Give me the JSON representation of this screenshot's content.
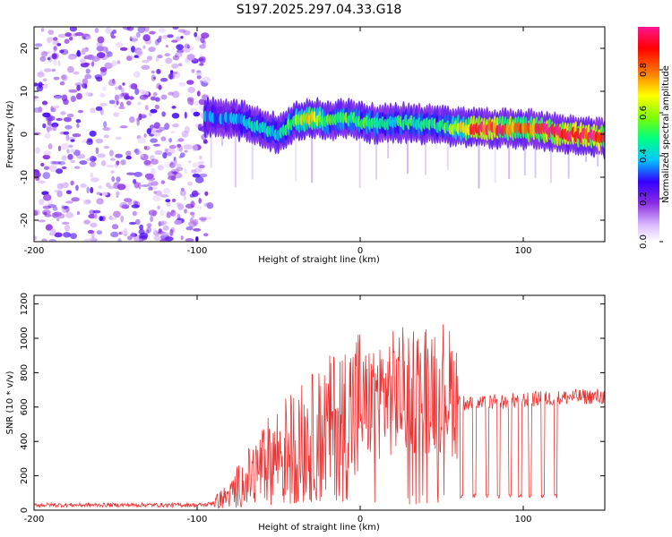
{
  "title": "S197.2025.297.04.33.G18",
  "chart_data": [
    {
      "type": "heatmap",
      "xlabel": "Height of straight line (km)",
      "ylabel": "Frequency (Hz)",
      "xlim": [
        -200,
        150
      ],
      "ylim": [
        -25,
        25
      ],
      "xticks": [
        -200,
        -100,
        0,
        100
      ],
      "yticks": [
        20,
        10,
        0,
        -10,
        -20
      ],
      "colorbar": {
        "label": "Normalized spectral amplitude",
        "range": [
          0,
          1
        ],
        "ticks": [
          0.0,
          0.2,
          0.4,
          0.6,
          0.8
        ],
        "colors": [
          "#ffffff",
          "#d9b8ff",
          "#8a2be2",
          "#3300ff",
          "#00c8ff",
          "#00ff80",
          "#80ff00",
          "#ffff00",
          "#ff8000",
          "#ff0000",
          "#ff1493"
        ]
      },
      "ridge": {
        "x": [
          -95,
          -80,
          -70,
          -60,
          -50,
          -40,
          -30,
          -20,
          -10,
          0,
          10,
          20,
          30,
          40,
          50,
          60,
          70,
          80,
          90,
          100,
          110,
          120,
          130,
          140,
          150
        ],
        "freq": [
          4,
          3.5,
          3,
          1.5,
          0,
          3,
          4,
          3,
          4,
          3,
          2.5,
          2.5,
          2.8,
          2.3,
          2,
          1.5,
          1.5,
          1.5,
          1.3,
          1.2,
          1,
          0.5,
          0,
          -0.5,
          -1
        ],
        "amplitude": [
          0.35,
          0.35,
          0.4,
          0.45,
          0.4,
          0.55,
          0.75,
          0.5,
          0.55,
          0.5,
          0.5,
          0.45,
          0.5,
          0.45,
          0.5,
          0.6,
          0.9,
          0.9,
          0.85,
          0.8,
          0.9,
          0.95,
          0.95,
          0.95,
          0.9
        ]
      }
    },
    {
      "type": "line",
      "xlabel": "Height of straight line (km)",
      "ylabel": "SNR (10 * v/v)",
      "xlim": [
        -200,
        150
      ],
      "ylim": [
        0,
        1250
      ],
      "xticks": [
        -200,
        -100,
        0,
        100
      ],
      "yticks": [
        0,
        200,
        400,
        600,
        800,
        1000,
        1200
      ],
      "color": "#ee3333",
      "series": [
        {
          "name": "SNR",
          "x": [
            -200,
            -160,
            -120,
            -95,
            -88,
            -80,
            -75,
            -70,
            -65,
            -60,
            -55,
            -50,
            -45,
            -40,
            -35,
            -30,
            -25,
            -20,
            -15,
            -10,
            -5,
            0,
            5,
            10,
            15,
            20,
            25,
            30,
            35,
            40,
            45,
            50,
            55,
            60,
            65,
            70,
            75,
            80,
            85,
            90,
            95,
            100,
            110,
            120,
            130,
            140,
            150
          ],
          "y": [
            30,
            30,
            30,
            30,
            50,
            90,
            140,
            180,
            220,
            260,
            300,
            330,
            360,
            380,
            400,
            420,
            440,
            470,
            500,
            530,
            560,
            590,
            620,
            650,
            670,
            680,
            690,
            700,
            710,
            720,
            730,
            730,
            690,
            640,
            620,
            620,
            620,
            630,
            630,
            630,
            640,
            640,
            650,
            650,
            660,
            660,
            660
          ]
        }
      ],
      "notches": [
        62,
        70,
        78,
        85,
        92,
        98,
        104,
        112,
        120
      ]
    }
  ]
}
